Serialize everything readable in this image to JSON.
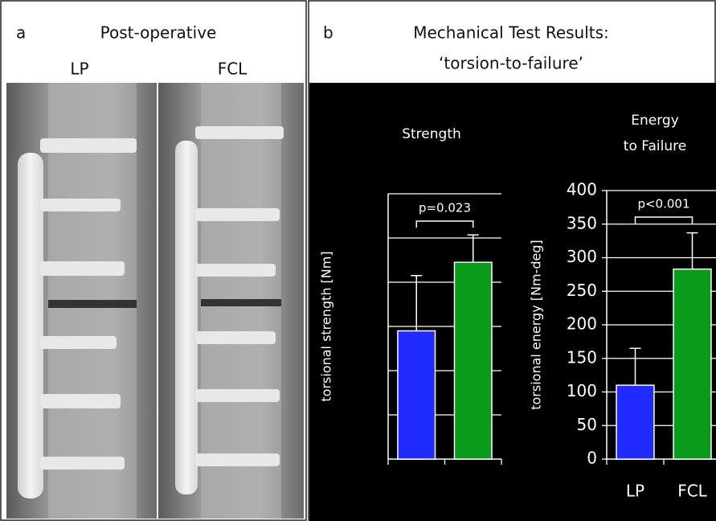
{
  "panel_a": {
    "letter": "a",
    "title": "Post-operative",
    "labels": [
      "LP",
      "FCL"
    ]
  },
  "panel_b": {
    "letter": "b",
    "title": [
      "Mechanical Test Results:",
      "‘torsion-to-failure’"
    ]
  },
  "chart_data": [
    {
      "type": "bar",
      "title": [
        "Strength"
      ],
      "y_label": "torsional strength [Nm]",
      "categories": [
        null,
        null
      ],
      "values": [
        29,
        44.5
      ],
      "errors": [
        12.5,
        6.2
      ],
      "colors": [
        "#1f2bff",
        "#0a9a1a"
      ],
      "ylim": [
        0,
        60
      ],
      "gridlines": [
        10,
        20,
        30,
        40,
        50,
        60
      ],
      "annotation": "p=0.023"
    },
    {
      "type": "bar",
      "title": [
        "Energy",
        "to Failure"
      ],
      "y_label": "torsional energy [Nm-deg]",
      "categories": [
        "LP",
        "FCL"
      ],
      "values": [
        110,
        283
      ],
      "errors": [
        55,
        54
      ],
      "colors": [
        "#1f2bff",
        "#0a9a1a"
      ],
      "ylim": [
        0,
        400
      ],
      "yticks": [
        0,
        50,
        100,
        150,
        200,
        250,
        300,
        350,
        400
      ],
      "gridlines": [
        50,
        100,
        150,
        200,
        250,
        300,
        350,
        400
      ],
      "annotation": "p<0.001"
    }
  ]
}
